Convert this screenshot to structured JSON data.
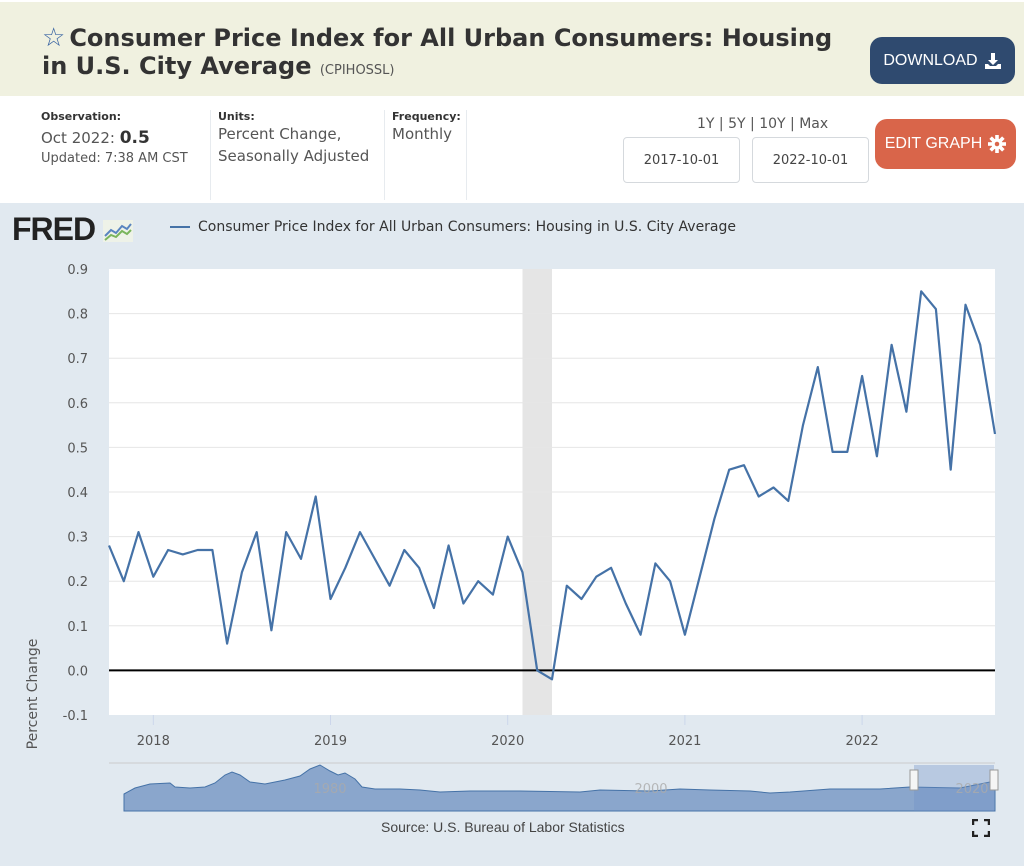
{
  "header": {
    "title": "Consumer Price Index for All Urban Consumers: Housing in U.S. City Average",
    "series_code": "(CPIHOSSL)",
    "favorite_icon": "star-outline-icon",
    "download_label": "DOWNLOAD",
    "download_icon": "download-icon"
  },
  "meta": {
    "observation_label": "Observation:",
    "observation_date": "Oct 2022:",
    "observation_value": "0.5",
    "updated": "Updated: 7:38 AM CST",
    "units_label": "Units:",
    "units_line1": "Percent Change,",
    "units_line2": "Seasonally Adjusted",
    "frequency_label": "Frequency:",
    "frequency_value": "Monthly"
  },
  "controls": {
    "range_links": [
      "1Y",
      "5Y",
      "10Y",
      "Max"
    ],
    "start_date": "2017-10-01",
    "end_date": "2022-10-01",
    "edit_graph_label": "EDIT GRAPH",
    "edit_icon": "gear-icon"
  },
  "branding": {
    "logo": "FRED"
  },
  "footer": {
    "source": "Source: U.S. Bureau of Labor Statistics"
  },
  "colors": {
    "line": "#4572a7",
    "download_btn": "#2f4a6f",
    "edit_btn": "#d9654a",
    "recession": "#e5e5e5"
  },
  "navigator": {
    "labels": [
      "1980",
      "2000",
      "2020"
    ]
  },
  "chart_data": {
    "type": "line",
    "title": "",
    "legend": [
      "Consumer Price Index for All Urban Consumers: Housing in U.S. City Average"
    ],
    "legend_placement": "top-left",
    "xlabel": "",
    "ylabel": "Percent Change",
    "ylim": [
      -0.1,
      0.9
    ],
    "yticks": [
      "0.9",
      "0.8",
      "0.7",
      "0.6",
      "0.5",
      "0.4",
      "0.3",
      "0.2",
      "0.1",
      "0.0",
      "-0.1"
    ],
    "xticks": [
      "2018",
      "2019",
      "2020",
      "2021",
      "2022"
    ],
    "grid": true,
    "recession_shading": {
      "start": "2020-02",
      "end": "2020-04"
    },
    "x": [
      "2017-10",
      "2017-11",
      "2017-12",
      "2018-01",
      "2018-02",
      "2018-03",
      "2018-04",
      "2018-05",
      "2018-06",
      "2018-07",
      "2018-08",
      "2018-09",
      "2018-10",
      "2018-11",
      "2018-12",
      "2019-01",
      "2019-02",
      "2019-03",
      "2019-04",
      "2019-05",
      "2019-06",
      "2019-07",
      "2019-08",
      "2019-09",
      "2019-10",
      "2019-11",
      "2019-12",
      "2020-01",
      "2020-02",
      "2020-03",
      "2020-04",
      "2020-05",
      "2020-06",
      "2020-07",
      "2020-08",
      "2020-09",
      "2020-10",
      "2020-11",
      "2020-12",
      "2021-01",
      "2021-02",
      "2021-03",
      "2021-04",
      "2021-05",
      "2021-06",
      "2021-07",
      "2021-08",
      "2021-09",
      "2021-10",
      "2021-11",
      "2021-12",
      "2022-01",
      "2022-02",
      "2022-03",
      "2022-04",
      "2022-05",
      "2022-06",
      "2022-07",
      "2022-08",
      "2022-09",
      "2022-10"
    ],
    "series": [
      {
        "name": "CPIHOSSL",
        "values": [
          0.28,
          0.2,
          0.31,
          0.21,
          0.27,
          0.26,
          0.27,
          0.27,
          0.06,
          0.22,
          0.31,
          0.09,
          0.31,
          0.25,
          0.39,
          0.16,
          0.23,
          0.31,
          0.25,
          0.19,
          0.27,
          0.23,
          0.14,
          0.28,
          0.15,
          0.2,
          0.17,
          0.3,
          0.22,
          0.0,
          -0.02,
          0.19,
          0.16,
          0.21,
          0.23,
          0.15,
          0.08,
          0.24,
          0.2,
          0.08,
          0.21,
          0.34,
          0.45,
          0.46,
          0.39,
          0.41,
          0.38,
          0.55,
          0.68,
          0.49,
          0.49,
          0.66,
          0.48,
          0.73,
          0.58,
          0.85,
          0.81,
          0.45,
          0.82,
          0.73,
          0.53
        ]
      }
    ]
  }
}
